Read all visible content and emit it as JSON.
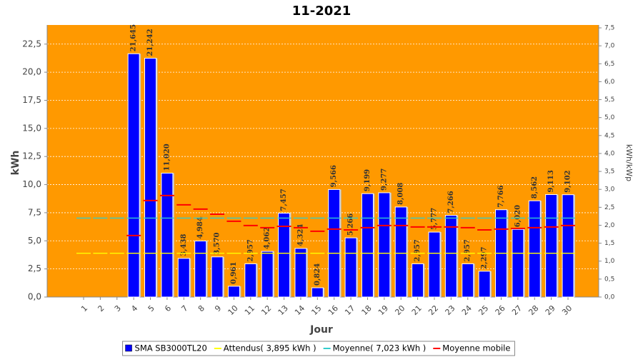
{
  "chart_data": {
    "type": "bar",
    "title": "11-2021",
    "categories": [
      "1",
      "2",
      "3",
      "4",
      "5",
      "6",
      "7",
      "8",
      "9",
      "10",
      "11",
      "12",
      "13",
      "14",
      "15",
      "16",
      "17",
      "18",
      "19",
      "20",
      "21",
      "22",
      "23",
      "24",
      "25",
      "26",
      "27",
      "28",
      "29",
      "30"
    ],
    "series": [
      {
        "name": "SMA SB3000TL20",
        "color": "#0000ff",
        "kind": "bar",
        "values": [
          0,
          0,
          0,
          21.645,
          21.242,
          11.02,
          3.438,
          4.984,
          3.57,
          0.961,
          2.957,
          4.062,
          7.457,
          4.324,
          0.824,
          9.566,
          5.266,
          9.199,
          9.277,
          8.008,
          2.957,
          5.777,
          7.266,
          2.957,
          2.297,
          7.766,
          6.02,
          8.562,
          9.113,
          9.102
        ],
        "value_labels": [
          null,
          null,
          null,
          "21,645",
          "21,242",
          "11,020",
          "3,438",
          "4,984",
          "3,570",
          "0,961",
          "2,957",
          "4,062",
          "7,457",
          "4,324",
          "0,824",
          "9,566",
          "5,266",
          "9,199",
          "9,277",
          "8,008",
          "2,957",
          "5,777",
          "7,266",
          "2,957",
          "2,297",
          "7,766",
          "6,020",
          "8,562",
          "9,113",
          "9,102"
        ]
      },
      {
        "name": "Attendus( 3,895 kWh )",
        "color": "#ffff00",
        "kind": "step",
        "values": [
          3.895,
          3.895,
          3.895,
          3.895,
          3.895,
          3.895,
          3.895,
          3.895,
          3.895,
          3.895,
          3.895,
          3.895,
          3.895,
          3.895,
          3.895,
          3.895,
          3.895,
          3.895,
          3.895,
          3.895,
          3.895,
          3.895,
          3.895,
          3.895,
          3.895,
          3.895,
          3.895,
          3.895,
          3.895,
          3.895
        ]
      },
      {
        "name": "Moyenne( 7,023 kWh )",
        "color": "#33cccc",
        "kind": "step",
        "values": [
          7.023,
          7.023,
          7.023,
          7.023,
          7.023,
          7.023,
          7.023,
          7.023,
          7.023,
          7.023,
          7.023,
          7.023,
          7.023,
          7.023,
          7.023,
          7.023,
          7.023,
          7.023,
          7.023,
          7.023,
          7.023,
          7.023,
          7.023,
          7.023,
          7.023,
          7.023,
          7.023,
          7.023,
          7.023,
          7.023
        ]
      },
      {
        "name": "Moyenne mobile",
        "color": "#ff0000",
        "kind": "step",
        "values": [
          null,
          null,
          null,
          5.47,
          8.58,
          9.03,
          8.2,
          7.82,
          7.37,
          6.74,
          6.36,
          6.17,
          6.29,
          6.17,
          5.85,
          6.04,
          5.97,
          6.17,
          6.36,
          6.36,
          6.23,
          6.23,
          6.23,
          6.17,
          5.97,
          6.04,
          6.1,
          6.17,
          6.23,
          6.36
        ]
      }
    ],
    "y_label": "kWh",
    "x_label": "Jour",
    "y2_label": "kWh/kWp",
    "ylim": [
      0,
      24.2
    ],
    "yticks": [
      {
        "value": 0,
        "label": "0,0"
      },
      {
        "value": 2.5,
        "label": "2,5"
      },
      {
        "value": 5,
        "label": "5,0"
      },
      {
        "value": 7.5,
        "label": "7,5"
      },
      {
        "value": 10,
        "label": "10,0"
      },
      {
        "value": 12.5,
        "label": "12,5"
      },
      {
        "value": 15,
        "label": "15,0"
      },
      {
        "value": 17.5,
        "label": "17,5"
      },
      {
        "value": 20,
        "label": "20,0"
      },
      {
        "value": 22.5,
        "label": "22,5"
      }
    ],
    "y2lim": [
      0,
      7.58
    ],
    "y2ticks": [
      {
        "value": 0,
        "label": "0,0"
      },
      {
        "value": 0.5,
        "label": "0,5"
      },
      {
        "value": 1,
        "label": "1,0"
      },
      {
        "value": 1.5,
        "label": "1,5"
      },
      {
        "value": 2,
        "label": "2,0"
      },
      {
        "value": 2.5,
        "label": "2,5"
      },
      {
        "value": 3,
        "label": "3,0"
      },
      {
        "value": 3.5,
        "label": "3,5"
      },
      {
        "value": 4,
        "label": "4,0"
      },
      {
        "value": 4.5,
        "label": "4,5"
      },
      {
        "value": 5,
        "label": "5,0"
      },
      {
        "value": 5.5,
        "label": "5,5"
      },
      {
        "value": 6,
        "label": "6,0"
      },
      {
        "value": 6.5,
        "label": "6,5"
      },
      {
        "value": 7,
        "label": "7,0"
      },
      {
        "value": 7.5,
        "label": "7,5"
      }
    ],
    "grid": true,
    "background": "#ff9900",
    "legend": "bottom"
  }
}
